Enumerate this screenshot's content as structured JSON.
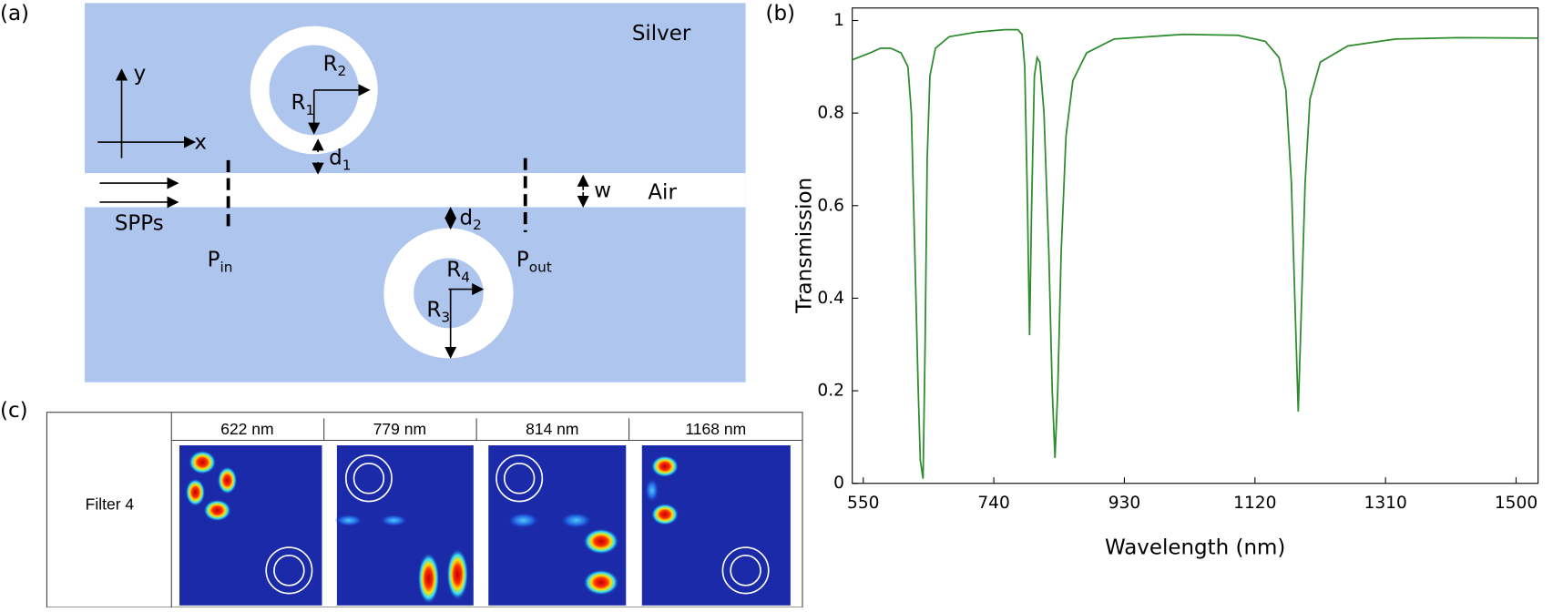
{
  "panel_labels": [
    "(a)",
    "(b)",
    "(c)"
  ],
  "schematic": {
    "silver": "Silver",
    "air": "Air",
    "spps": "SPPs",
    "x_axis": "x",
    "y_axis": "y",
    "w": "w",
    "r1": {
      "main": "R",
      "sub": "1"
    },
    "r2": {
      "main": "R",
      "sub": "2"
    },
    "r3": {
      "main": "R",
      "sub": "3"
    },
    "r4": {
      "main": "R",
      "sub": "4"
    },
    "d1": {
      "main": "d",
      "sub": "1"
    },
    "d2": {
      "main": "d",
      "sub": "2"
    },
    "p_in": {
      "main": "P",
      "sub": "in"
    },
    "p_out": {
      "main": "P",
      "sub": "out"
    }
  },
  "chart_data": {
    "type": "line",
    "x_label": "Wavelength (nm)",
    "y_label": "Transmission",
    "xlim": [
      534,
      1532
    ],
    "xticks": [
      550,
      740,
      930,
      1120,
      1310,
      1500
    ],
    "ylim": [
      0,
      1.027
    ],
    "yticks": [
      0,
      0.2,
      0.4,
      0.6,
      0.8,
      1
    ],
    "series": [
      {
        "color": "#2e8b2e",
        "x": [
          534,
          560,
          575,
          590,
          605,
          615,
          620,
          625,
          630,
          633,
          637,
          640,
          643,
          647,
          655,
          675,
          715,
          755,
          775,
          781,
          785,
          789,
          792,
          795,
          799,
          803,
          807,
          813,
          820,
          825,
          829,
          833,
          838,
          845,
          855,
          875,
          915,
          1015,
          1095,
          1135,
          1155,
          1165,
          1173,
          1179,
          1183,
          1187,
          1193,
          1200,
          1215,
          1255,
          1325,
          1415,
          1532
        ],
        "values": [
          0.915,
          0.93,
          0.94,
          0.94,
          0.93,
          0.9,
          0.8,
          0.5,
          0.2,
          0.05,
          0.01,
          0.3,
          0.7,
          0.88,
          0.94,
          0.965,
          0.975,
          0.98,
          0.98,
          0.97,
          0.9,
          0.6,
          0.32,
          0.6,
          0.88,
          0.92,
          0.91,
          0.8,
          0.5,
          0.2,
          0.055,
          0.2,
          0.5,
          0.75,
          0.87,
          0.93,
          0.96,
          0.97,
          0.968,
          0.955,
          0.92,
          0.85,
          0.65,
          0.35,
          0.155,
          0.35,
          0.65,
          0.83,
          0.91,
          0.945,
          0.96,
          0.963,
          0.962
        ]
      }
    ]
  },
  "field_maps": {
    "row_label": "Filter 4",
    "columns": [
      "622 nm",
      "779 nm",
      "814 nm",
      "1168 nm"
    ]
  }
}
